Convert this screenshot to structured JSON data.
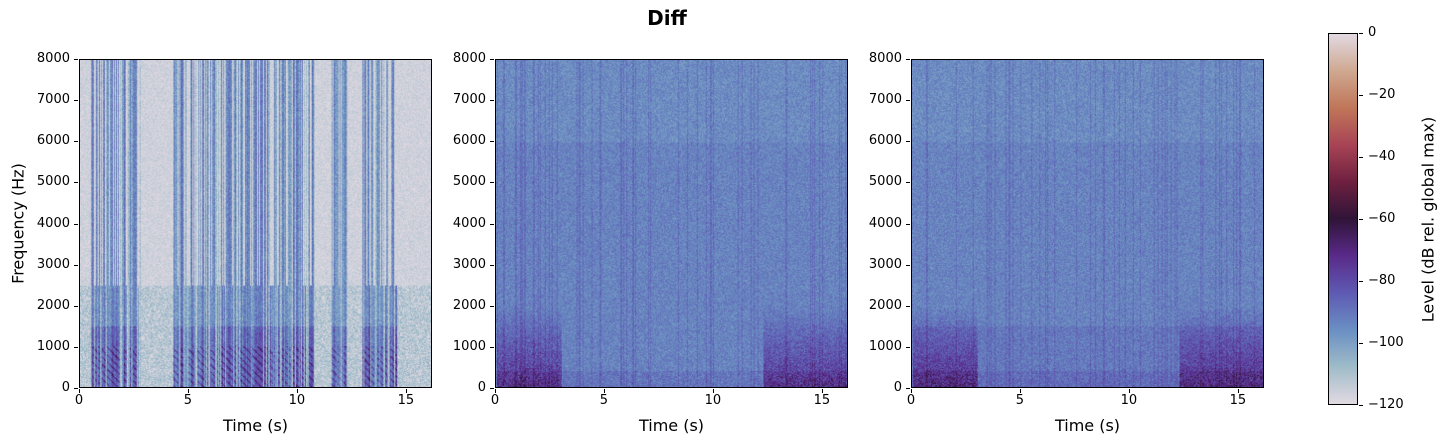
{
  "chart_data": {
    "type": "heatmap",
    "title": "Diff",
    "panels": [
      {
        "name": "spectrogram-1",
        "xlabel": "Time (s)",
        "ylabel": "Frequency (Hz)",
        "xlim": [
          0,
          16.2
        ],
        "ylim": [
          0,
          8000
        ],
        "xticks": [
          0,
          5,
          10,
          15
        ],
        "yticks": [
          0,
          1000,
          2000,
          3000,
          4000,
          5000,
          6000,
          7000,
          8000
        ],
        "description": "Mostly very low level (-100 to -120 dB) background with speech bursts at 0.5-2.8s, 4.3-10.8s, 11.6-12.3s, 13-14.6s; harmonic stripes reaching -40 dB below 1000 Hz"
      },
      {
        "name": "spectrogram-2",
        "xlabel": "Time (s)",
        "ylabel": "",
        "xlim": [
          0,
          16.2
        ],
        "ylim": [
          0,
          8000
        ],
        "xticks": [
          0,
          5,
          10,
          15
        ],
        "yticks": [
          0,
          1000,
          2000,
          3000,
          4000,
          5000,
          6000,
          7000,
          8000
        ],
        "description": "Dense noise at -60 to -85 dB across all frequencies; energy up to -20 dB below 2000 Hz near 0-3s and 12.5-16s"
      },
      {
        "name": "spectrogram-3",
        "xlabel": "Time (s)",
        "ylabel": "",
        "xlim": [
          0,
          16.2
        ],
        "ylim": [
          0,
          8000
        ],
        "xticks": [
          0,
          5,
          10,
          15
        ],
        "yticks": [
          0,
          1000,
          2000,
          3000,
          4000,
          5000,
          6000,
          7000,
          8000
        ],
        "description": "Similar to panel 2 with slightly brighter lower band; low-frequency energy up to -20 dB at 0-3s and 12-16s"
      }
    ],
    "colorbar": {
      "label": "Level (dB rel. global max)",
      "range": [
        -120,
        0
      ],
      "ticks": [
        0,
        -20,
        -40,
        -60,
        -80,
        -100,
        -120
      ],
      "colormap": "twilight-like (light gray → blue → purple → dark → red → tan → light gray)"
    }
  },
  "labels": {
    "title": "Diff",
    "xlabel": "Time (s)",
    "ylabel": "Frequency (Hz)",
    "colorbar_label": "Level (dB rel. global max)",
    "yticks": [
      "8000",
      "7000",
      "6000",
      "5000",
      "4000",
      "3000",
      "2000",
      "1000",
      "0"
    ],
    "xticks": [
      "0",
      "5",
      "10",
      "15"
    ],
    "cticks": [
      "0",
      "−20",
      "−40",
      "−60",
      "−80",
      "−100",
      "−120"
    ]
  },
  "colors": {
    "cmap": [
      "#e2d9e2",
      "#9fbcc8",
      "#6a8fc3",
      "#5e5ab3",
      "#5a2a8a",
      "#2f1438",
      "#6e2040",
      "#a84455",
      "#c07558",
      "#cfa891",
      "#e2d9e2"
    ]
  }
}
